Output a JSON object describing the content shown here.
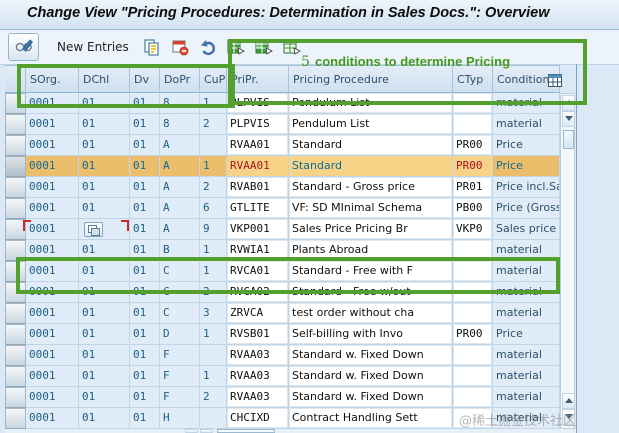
{
  "title": "Change View \"Pricing Procedures: Determination in Sales Docs.\": Overview",
  "toolbar": {
    "new_entries_label": "New Entries",
    "icons": [
      "display-change-icon",
      "copy-icon",
      "delete-icon",
      "undo-icon",
      "select-all-icon",
      "select-block-icon",
      "deselect-all-icon"
    ]
  },
  "annotation": {
    "number": "5",
    "text": "conditions to determine Pricing",
    "color": "#54a02e"
  },
  "table": {
    "columns": [
      {
        "key": "sorg",
        "label": "SOrg."
      },
      {
        "key": "dchl",
        "label": "DChl"
      },
      {
        "key": "dv",
        "label": "Dv"
      },
      {
        "key": "dopr",
        "label": "DoPr"
      },
      {
        "key": "cupp",
        "label": "CuPP"
      },
      {
        "key": "pripr",
        "label": "PriPr."
      },
      {
        "key": "proc",
        "label": "Pricing Procedure"
      },
      {
        "key": "ctyp",
        "label": "CTyp"
      },
      {
        "key": "cond",
        "label": "Condition ty"
      }
    ],
    "rows": [
      {
        "sorg": "0001",
        "dchl": "01",
        "dv": "01",
        "dopr": "8",
        "cupp": "1",
        "pripr": "PLPVIS",
        "proc": "Pendulum List",
        "ctyp": "",
        "cond": "material"
      },
      {
        "sorg": "0001",
        "dchl": "01",
        "dv": "01",
        "dopr": "8",
        "cupp": "2",
        "pripr": "PLPVIS",
        "proc": "Pendulum List",
        "ctyp": "",
        "cond": "material"
      },
      {
        "sorg": "0001",
        "dchl": "01",
        "dv": "01",
        "dopr": "A",
        "cupp": "",
        "pripr": "RVAA01",
        "proc": "Standard",
        "ctyp": "PR00",
        "cond": "Price"
      },
      {
        "sorg": "0001",
        "dchl": "01",
        "dv": "01",
        "dopr": "A",
        "cupp": "1",
        "pripr": "RVAA01",
        "proc": "Standard",
        "ctyp": "PR00",
        "cond": "Price",
        "selected": true
      },
      {
        "sorg": "0001",
        "dchl": "01",
        "dv": "01",
        "dopr": "A",
        "cupp": "2",
        "pripr": "RVAB01",
        "proc": "Standard - Gross price",
        "ctyp": "PR01",
        "cond": "Price incl.Sal"
      },
      {
        "sorg": "0001",
        "dchl": "01",
        "dv": "01",
        "dopr": "A",
        "cupp": "6",
        "pripr": "GTLITE",
        "proc": "VF: SD MInimal Schema",
        "ctyp": "PB00",
        "cond": "Price (Gross)"
      },
      {
        "sorg": "0001",
        "dchl": "",
        "dchl_icon": true,
        "dv": "01",
        "dopr": "A",
        "cupp": "9",
        "pripr": "VKP001",
        "proc": "Sales Price Pricing Br",
        "ctyp": "VKP0",
        "cond": "Sales price"
      },
      {
        "sorg": "0001",
        "dchl": "01",
        "dv": "01",
        "dopr": "B",
        "cupp": "1",
        "pripr": "RVWIA1",
        "proc": "Plants Abroad",
        "ctyp": "",
        "cond": "material"
      },
      {
        "sorg": "0001",
        "dchl": "01",
        "dv": "01",
        "dopr": "C",
        "cupp": "1",
        "pripr": "RVCA01",
        "proc": "Standard - Free with F",
        "ctyp": "",
        "cond": "material"
      },
      {
        "sorg": "0001",
        "dchl": "01",
        "dv": "01",
        "dopr": "C",
        "cupp": "2",
        "pripr": "RVCA02",
        "proc": "Standard - Free w/out",
        "ctyp": "",
        "cond": "material"
      },
      {
        "sorg": "0001",
        "dchl": "01",
        "dv": "01",
        "dopr": "C",
        "cupp": "3",
        "pripr": "ZRVCA",
        "proc": "test order without cha",
        "ctyp": "",
        "cond": "material"
      },
      {
        "sorg": "0001",
        "dchl": "01",
        "dv": "01",
        "dopr": "D",
        "cupp": "1",
        "pripr": "RVSB01",
        "proc": "Self-billing with Invo",
        "ctyp": "PR00",
        "cond": "Price"
      },
      {
        "sorg": "0001",
        "dchl": "01",
        "dv": "01",
        "dopr": "F",
        "cupp": "",
        "pripr": "RVAA03",
        "proc": "Standard w. Fixed Down",
        "ctyp": "",
        "cond": "material"
      },
      {
        "sorg": "0001",
        "dchl": "01",
        "dv": "01",
        "dopr": "F",
        "cupp": "1",
        "pripr": "RVAA03",
        "proc": "Standard w. Fixed Down",
        "ctyp": "",
        "cond": "material"
      },
      {
        "sorg": "0001",
        "dchl": "01",
        "dv": "01",
        "dopr": "F",
        "cupp": "2",
        "pripr": "RVAA03",
        "proc": "Standard w. Fixed Down",
        "ctyp": "",
        "cond": "material"
      },
      {
        "sorg": "0001",
        "dchl": "01",
        "dv": "01",
        "dopr": "H",
        "cupp": "",
        "pripr": "CHCIXD",
        "proc": "Contract Handling Sett",
        "ctyp": "",
        "cond": "material"
      }
    ]
  },
  "colors": {
    "selected_row": "#ecbe6b",
    "highlight_text_red": "#ab1222",
    "annotation_green": "#54a02e"
  },
  "watermark": "@稀土掘金技术社区"
}
